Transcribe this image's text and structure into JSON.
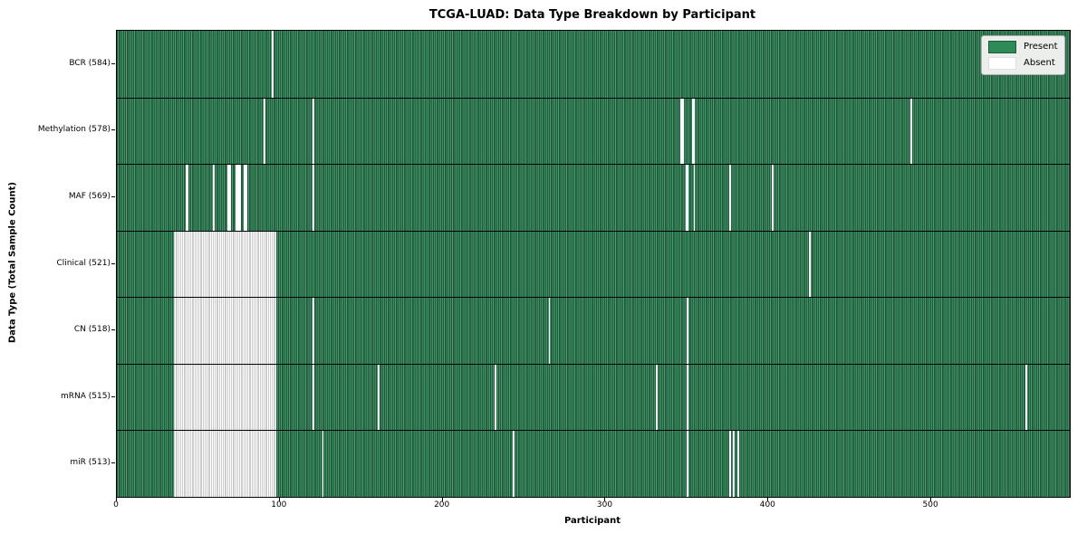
{
  "title": "TCGA-LUAD: Data Type Breakdown by Participant",
  "legend": {
    "present_label": "Present",
    "absent_label": "Absent"
  },
  "colors": {
    "present": "#2e8b57",
    "present_light": "#4f9e70",
    "present_dark": "#0f2f1e",
    "absent": "#ffffff",
    "absent_edge": "#9a9a9a",
    "legend_bg": "#ebeeeb",
    "legend_border": "#b0b0b0"
  },
  "chart_data": {
    "type": "heatmap",
    "title": "TCGA-LUAD: Data Type Breakdown by Participant",
    "xlabel": "Participant",
    "ylabel": "Data Type (Total Sample Count)",
    "legend": [
      "Present",
      "Absent"
    ],
    "legend_position": "upper right",
    "grid": false,
    "x_range": [
      0,
      585
    ],
    "x_ticks": [
      0,
      100,
      200,
      300,
      400,
      500
    ],
    "cell_values": "binary presence (1 = Present green, 0 = Absent white)",
    "rows": [
      {
        "name": "BCR",
        "label": "BCR (584)",
        "total_sample_count": 584,
        "absent_ranges": [
          [
            95,
            1
          ]
        ]
      },
      {
        "name": "Methylation",
        "label": "Methylation (578)",
        "total_sample_count": 578,
        "absent_ranges": [
          [
            90,
            1
          ],
          [
            120,
            1
          ],
          [
            346,
            2
          ],
          [
            353,
            2
          ],
          [
            487,
            1
          ]
        ]
      },
      {
        "name": "MAF",
        "label": "MAF (569)",
        "total_sample_count": 569,
        "absent_ranges": [
          [
            42,
            2
          ],
          [
            59,
            1
          ],
          [
            68,
            2
          ],
          [
            73,
            3
          ],
          [
            78,
            2
          ],
          [
            120,
            1
          ],
          [
            349,
            2
          ],
          [
            354,
            1
          ],
          [
            376,
            1
          ],
          [
            402,
            1
          ]
        ]
      },
      {
        "name": "Clinical",
        "label": "Clinical (521)",
        "total_sample_count": 521,
        "absent_ranges": [
          [
            35,
            63
          ],
          [
            425,
            1
          ]
        ]
      },
      {
        "name": "CN",
        "label": "CN (518)",
        "total_sample_count": 518,
        "absent_ranges": [
          [
            35,
            63
          ],
          [
            120,
            1
          ],
          [
            265,
            1
          ],
          [
            350,
            1
          ]
        ]
      },
      {
        "name": "mRNA",
        "label": "mRNA (515)",
        "total_sample_count": 515,
        "absent_ranges": [
          [
            35,
            63
          ],
          [
            120,
            1
          ],
          [
            160,
            1
          ],
          [
            232,
            1
          ],
          [
            331,
            1
          ],
          [
            350,
            1
          ],
          [
            558,
            1
          ]
        ]
      },
      {
        "name": "miR",
        "label": "miR (513)",
        "total_sample_count": 513,
        "absent_ranges": [
          [
            35,
            63
          ],
          [
            126,
            1
          ],
          [
            243,
            1
          ],
          [
            350,
            1
          ],
          [
            376,
            1
          ],
          [
            378,
            1
          ],
          [
            381,
            1
          ]
        ]
      }
    ]
  }
}
